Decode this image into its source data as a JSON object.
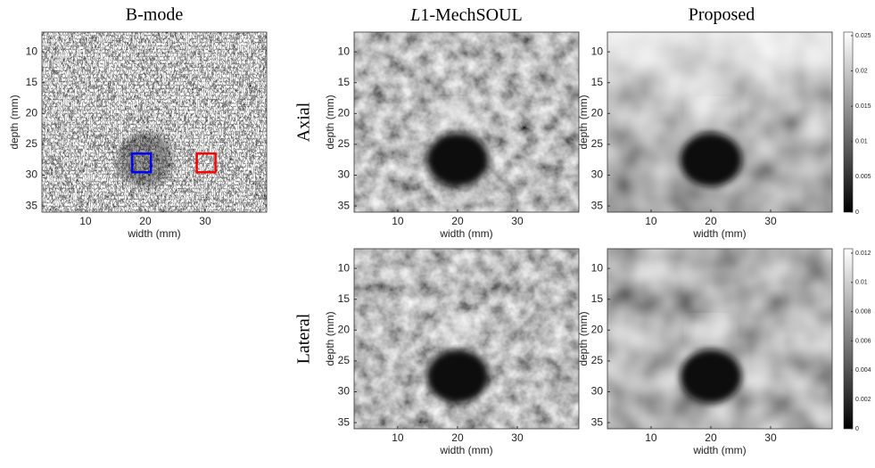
{
  "columns": [
    {
      "title": "B-mode"
    },
    {
      "title_italic": "L",
      "title": "1-MechSOUL"
    },
    {
      "title": "Proposed"
    }
  ],
  "rows": [
    "Axial",
    "Lateral"
  ],
  "axes": {
    "xlabel": "width (mm)",
    "ylabel": "depth (mm)",
    "xlim": [
      2.7,
      40.3
    ],
    "ylim": [
      6.8,
      36
    ],
    "xticks": [
      10,
      20,
      30
    ],
    "yticks": [
      10,
      15,
      20,
      25,
      30,
      35
    ]
  },
  "colorbars": [
    {
      "lim": [
        0,
        0.0255
      ],
      "ticks": [
        0,
        0.005,
        0.01,
        0.015,
        0.02,
        0.025
      ]
    },
    {
      "lim": [
        0,
        0.0123
      ],
      "ticks": [
        0,
        0.002,
        0.004,
        0.006,
        0.008,
        0.01,
        0.012
      ]
    }
  ]
}
